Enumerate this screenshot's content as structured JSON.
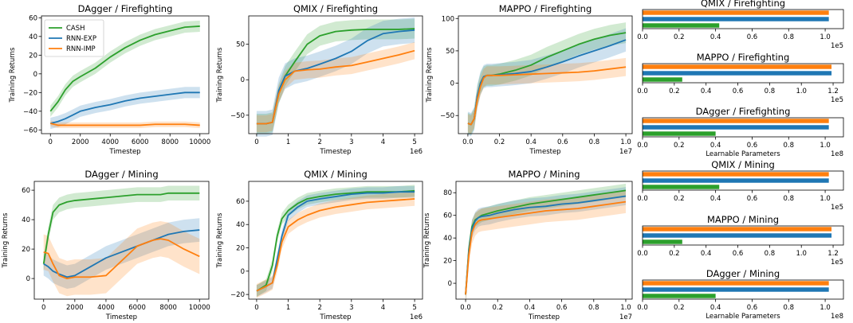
{
  "colors": {
    "cash": "#2ca02c",
    "rnn_exp": "#1f77b4",
    "rnn_imp": "#ff7f0e"
  },
  "legend": [
    {
      "name": "CASH",
      "color": "#2ca02c"
    },
    {
      "name": "RNN-EXP",
      "color": "#1f77b4"
    },
    {
      "name": "RNN-IMP",
      "color": "#ff7f0e"
    }
  ],
  "chart_data": [
    {
      "type": "line",
      "title": "DAgger / Firefighting",
      "xlabel": "Timestep",
      "ylabel": "Training Returns",
      "xlim": [
        -600,
        10600
      ],
      "ylim": [
        -64,
        62
      ],
      "xscale_label": "",
      "xticks": [
        0,
        2000,
        4000,
        6000,
        8000,
        10000
      ],
      "xtick_labels": [
        "0",
        "2000",
        "4000",
        "6000",
        "8000",
        "10000"
      ],
      "yticks": [
        -60,
        -40,
        -20,
        0,
        20,
        40,
        60
      ],
      "ytick_labels": [
        "−60",
        "−40",
        "−20",
        "0",
        "20",
        "40",
        "60"
      ],
      "x": [
        0,
        500,
        1000,
        1500,
        2000,
        3000,
        4000,
        5000,
        6000,
        7000,
        8000,
        9000,
        10000
      ],
      "series": [
        {
          "name": "CASH",
          "values": [
            -40,
            -30,
            -17,
            -8,
            -3,
            6,
            18,
            28,
            36,
            42,
            46,
            50,
            51
          ],
          "band": 6
        },
        {
          "name": "RNN-EXP",
          "values": [
            -53,
            -51,
            -48,
            -44,
            -40,
            -36,
            -33,
            -29,
            -26,
            -24,
            -22,
            -20,
            -20
          ],
          "band": 6
        },
        {
          "name": "RNN-IMP",
          "values": [
            -53,
            -55,
            -55,
            -55,
            -55,
            -55,
            -55,
            -55,
            -55,
            -54,
            -54,
            -54,
            -55
          ],
          "band": 3
        }
      ],
      "legend_location": "upper-left"
    },
    {
      "type": "line",
      "title": "QMIX / Firefighting",
      "xlabel": "Timestep",
      "ylabel": "Training Returns",
      "xlim": [
        -0.25,
        5.25
      ],
      "ylim": [
        -76,
        90
      ],
      "xscale_label": "1e6",
      "xticks": [
        0,
        1,
        2,
        3,
        4,
        5
      ],
      "xtick_labels": [
        "0",
        "1",
        "2",
        "3",
        "4",
        "5"
      ],
      "yticks": [
        -50,
        0,
        50
      ],
      "ytick_labels": [
        "−50",
        "0",
        "50"
      ],
      "x": [
        0,
        0.3,
        0.5,
        0.7,
        0.9,
        1.2,
        1.6,
        2.0,
        2.5,
        3.0,
        3.5,
        4.0,
        4.5,
        5.0
      ],
      "series": [
        {
          "name": "CASH",
          "values": [
            -62,
            -62,
            -60,
            -20,
            5,
            25,
            50,
            62,
            68,
            70,
            71,
            71,
            71,
            72
          ],
          "band": 14
        },
        {
          "name": "RNN-EXP",
          "values": [
            -62,
            -62,
            -60,
            -15,
            5,
            12,
            16,
            22,
            30,
            40,
            55,
            65,
            68,
            70
          ],
          "band": 18
        },
        {
          "name": "RNN-IMP",
          "values": [
            -62,
            -62,
            -60,
            -20,
            0,
            12,
            14,
            15,
            18,
            20,
            25,
            30,
            35,
            41
          ],
          "band": 12
        }
      ]
    },
    {
      "type": "line",
      "title": "MAPPO / Firefighting",
      "xlabel": "Timestep",
      "ylabel": "Training Returns",
      "xlim": [
        -0.06,
        1.04
      ],
      "ylim": [
        -78,
        104
      ],
      "xscale_label": "1e7",
      "xticks": [
        0,
        0.2,
        0.4,
        0.6,
        0.8,
        1.0
      ],
      "xtick_labels": [
        "0.0",
        "0.2",
        "0.4",
        "0.6",
        "0.8",
        "1.0"
      ],
      "yticks": [
        -50,
        0,
        50,
        100
      ],
      "ytick_labels": [
        "−50",
        "0",
        "50",
        "100"
      ],
      "x": [
        0,
        0.02,
        0.04,
        0.06,
        0.08,
        0.1,
        0.12,
        0.15,
        0.2,
        0.3,
        0.4,
        0.5,
        0.6,
        0.7,
        0.8,
        0.9,
        1.0
      ],
      "series": [
        {
          "name": "CASH",
          "values": [
            -62,
            -64,
            -55,
            -20,
            0,
            10,
            12,
            12,
            14,
            20,
            28,
            40,
            50,
            60,
            68,
            74,
            78
          ],
          "band": 16
        },
        {
          "name": "RNN-EXP",
          "values": [
            -62,
            -64,
            -55,
            -20,
            0,
            10,
            12,
            12,
            13,
            15,
            18,
            25,
            33,
            42,
            50,
            58,
            67
          ],
          "band": 18
        },
        {
          "name": "RNN-IMP",
          "values": [
            -62,
            -64,
            -55,
            -25,
            -5,
            8,
            12,
            12,
            12,
            13,
            14,
            15,
            16,
            17,
            19,
            22,
            25
          ],
          "band": 14
        }
      ]
    },
    {
      "type": "line",
      "title": "DAgger / Mining",
      "xlabel": "Timestep",
      "ylabel": "Training Returns",
      "xlim": [
        -600,
        10600
      ],
      "ylim": [
        -14,
        66
      ],
      "xscale_label": "",
      "xticks": [
        0,
        2000,
        4000,
        6000,
        8000,
        10000
      ],
      "xtick_labels": [
        "0",
        "2000",
        "4000",
        "6000",
        "8000",
        "10000"
      ],
      "yticks": [
        0,
        20,
        40,
        60
      ],
      "ytick_labels": [
        "0",
        "20",
        "40",
        "60"
      ],
      "x": [
        0,
        300,
        600,
        1000,
        1500,
        2000,
        3000,
        4000,
        5000,
        6000,
        7000,
        7500,
        8000,
        9000,
        10000
      ],
      "series": [
        {
          "name": "CASH",
          "values": [
            10,
            30,
            45,
            50,
            52,
            53,
            54,
            55,
            56,
            57,
            57,
            57,
            58,
            58,
            58
          ],
          "band": 5
        },
        {
          "name": "RNN-EXP",
          "values": [
            10,
            8,
            5,
            3,
            1,
            2,
            8,
            14,
            18,
            22,
            26,
            28,
            30,
            32,
            33
          ],
          "band": 8
        },
        {
          "name": "RNN-IMP",
          "values": [
            18,
            17,
            10,
            2,
            0,
            1,
            1,
            2,
            12,
            22,
            26,
            27,
            26,
            20,
            15
          ],
          "band": 12
        }
      ]
    },
    {
      "type": "line",
      "title": "QMIX / Mining",
      "xlabel": "Timestep",
      "ylabel": "Training Returns",
      "xlim": [
        -0.25,
        5.25
      ],
      "ylim": [
        -24,
        77
      ],
      "xscale_label": "1e6",
      "xticks": [
        0,
        1,
        2,
        3,
        4,
        5
      ],
      "xtick_labels": [
        "0",
        "1",
        "2",
        "3",
        "4",
        "5"
      ],
      "yticks": [
        -20,
        0,
        20,
        40,
        60
      ],
      "ytick_labels": [
        "−20",
        "0",
        "20",
        "40",
        "60"
      ],
      "x": [
        0,
        0.3,
        0.5,
        0.65,
        0.8,
        1.0,
        1.3,
        1.6,
        2.0,
        2.5,
        3.0,
        3.5,
        4.0,
        4.5,
        5.0
      ],
      "series": [
        {
          "name": "CASH",
          "values": [
            -17,
            -12,
            5,
            30,
            45,
            52,
            58,
            62,
            64,
            66,
            67,
            68,
            68,
            68,
            69
          ],
          "band": 5
        },
        {
          "name": "RNN-EXP",
          "values": [
            -17,
            -13,
            -10,
            10,
            30,
            48,
            55,
            60,
            62,
            64,
            66,
            67,
            67,
            68,
            68
          ],
          "band": 5
        },
        {
          "name": "RNN-IMP",
          "values": [
            -17,
            -13,
            -10,
            5,
            25,
            38,
            44,
            48,
            52,
            55,
            57,
            59,
            60,
            61,
            62
          ],
          "band": 6
        }
      ]
    },
    {
      "type": "line",
      "title": "MAPPO / Mining",
      "xlabel": "Timestep",
      "ylabel": "Training Returns",
      "xlim": [
        -0.06,
        1.04
      ],
      "ylim": [
        -14,
        90
      ],
      "xscale_label": "1e7",
      "xticks": [
        0,
        0.2,
        0.4,
        0.6,
        0.8,
        1.0
      ],
      "xtick_labels": [
        "0.0",
        "0.2",
        "0.4",
        "0.6",
        "0.8",
        "1.0"
      ],
      "yticks": [
        0,
        20,
        40,
        60,
        80
      ],
      "ytick_labels": [
        "0",
        "20",
        "40",
        "60",
        "80"
      ],
      "x": [
        0,
        0.02,
        0.04,
        0.06,
        0.08,
        0.1,
        0.15,
        0.2,
        0.3,
        0.4,
        0.5,
        0.6,
        0.7,
        0.8,
        0.9,
        1.0
      ],
      "series": [
        {
          "name": "CASH",
          "values": [
            -10,
            30,
            50,
            56,
            58,
            60,
            62,
            64,
            67,
            70,
            72,
            74,
            76,
            78,
            80,
            82
          ],
          "band": 6
        },
        {
          "name": "RNN-EXP",
          "values": [
            -10,
            28,
            48,
            55,
            58,
            59,
            60,
            62,
            65,
            67,
            68,
            70,
            71,
            73,
            75,
            77
          ],
          "band": 8
        },
        {
          "name": "RNN-IMP",
          "values": [
            -10,
            25,
            45,
            52,
            55,
            56,
            57,
            58,
            60,
            62,
            64,
            65,
            66,
            68,
            70,
            72
          ],
          "band": 10
        }
      ]
    },
    {
      "type": "bar-horizontal",
      "title": "QMIX / Firefighting",
      "xlabel": "",
      "xscale_label": "1e5",
      "xlim": [
        0,
        1.1
      ],
      "xticks": [
        0,
        0.2,
        0.4,
        0.6,
        0.8,
        1.0
      ],
      "xtick_labels": [
        "0.0",
        "0.2",
        "0.4",
        "0.6",
        "0.8",
        "1.0"
      ],
      "bars": [
        {
          "name": "RNN-IMP",
          "value": 1.02
        },
        {
          "name": "RNN-EXP",
          "value": 1.02
        },
        {
          "name": "CASH",
          "value": 0.42
        }
      ]
    },
    {
      "type": "bar-horizontal",
      "title": "MAPPO / Firefighting",
      "xlabel": "",
      "xscale_label": "1e5",
      "xlim": [
        0,
        1.265
      ],
      "xticks": [
        0,
        0.2,
        0.4,
        0.6,
        0.8,
        1.0,
        1.2
      ],
      "xtick_labels": [
        "0.0",
        "0.2",
        "0.4",
        "0.6",
        "0.8",
        "1.0",
        "1.2"
      ],
      "bars": [
        {
          "name": "RNN-IMP",
          "value": 1.19
        },
        {
          "name": "RNN-EXP",
          "value": 1.19
        },
        {
          "name": "CASH",
          "value": 0.25
        }
      ]
    },
    {
      "type": "bar-horizontal",
      "title": "DAgger / Firefighting",
      "xlabel": "Learnable Parameters",
      "xscale_label": "1e8",
      "xlim": [
        0,
        1.1
      ],
      "xticks": [
        0,
        0.2,
        0.4,
        0.6,
        0.8,
        1.0
      ],
      "xtick_labels": [
        "0.0",
        "0.2",
        "0.4",
        "0.6",
        "0.8",
        "1.0"
      ],
      "bars": [
        {
          "name": "RNN-IMP",
          "value": 1.02
        },
        {
          "name": "RNN-EXP",
          "value": 1.02
        },
        {
          "name": "CASH",
          "value": 0.4
        }
      ]
    },
    {
      "type": "bar-horizontal",
      "title": "QMIX / Mining",
      "xlabel": "",
      "xscale_label": "1e5",
      "xlim": [
        0,
        1.1
      ],
      "xticks": [
        0,
        0.2,
        0.4,
        0.6,
        0.8,
        1.0
      ],
      "xtick_labels": [
        "0.0",
        "0.2",
        "0.4",
        "0.6",
        "0.8",
        "1.0"
      ],
      "bars": [
        {
          "name": "RNN-IMP",
          "value": 1.02
        },
        {
          "name": "RNN-EXP",
          "value": 1.02
        },
        {
          "name": "CASH",
          "value": 0.42
        }
      ]
    },
    {
      "type": "bar-horizontal",
      "title": "MAPPO / Mining",
      "xlabel": "",
      "xscale_label": "1e5",
      "xlim": [
        0,
        1.265
      ],
      "xticks": [
        0,
        0.2,
        0.4,
        0.6,
        0.8,
        1.0,
        1.2
      ],
      "xtick_labels": [
        "0.0",
        "0.2",
        "0.4",
        "0.6",
        "0.8",
        "1.0",
        "1.2"
      ],
      "bars": [
        {
          "name": "RNN-IMP",
          "value": 1.19
        },
        {
          "name": "RNN-EXP",
          "value": 1.19
        },
        {
          "name": "CASH",
          "value": 0.25
        }
      ]
    },
    {
      "type": "bar-horizontal",
      "title": "DAgger / Mining",
      "xlabel": "Learnable Parameters",
      "xscale_label": "1e8",
      "xlim": [
        0,
        1.1
      ],
      "xticks": [
        0,
        0.2,
        0.4,
        0.6,
        0.8,
        1.0
      ],
      "xtick_labels": [
        "0.0",
        "0.2",
        "0.4",
        "0.6",
        "0.8",
        "1.0"
      ],
      "bars": [
        {
          "name": "RNN-IMP",
          "value": 1.02
        },
        {
          "name": "RNN-EXP",
          "value": 1.02
        },
        {
          "name": "CASH",
          "value": 0.4
        }
      ]
    }
  ]
}
